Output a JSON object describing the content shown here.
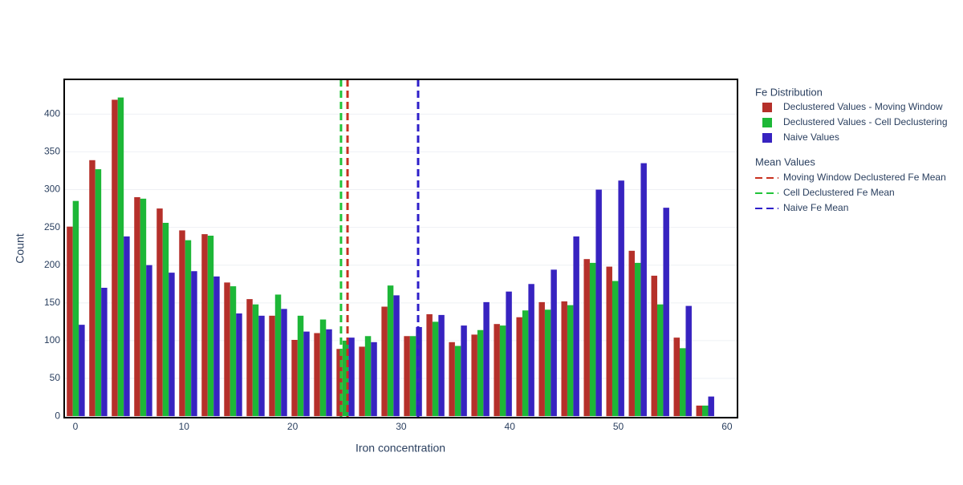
{
  "chart_data": {
    "type": "histogram",
    "x_label": "Iron concentration",
    "y_label": "Count",
    "bins": [
      -1,
      1.07,
      3.14,
      5.21,
      7.28,
      9.35,
      11.42,
      13.49,
      15.56,
      17.63,
      19.7,
      21.77,
      23.84,
      25.91,
      27.98,
      30.05,
      32.12,
      34.19,
      36.26,
      38.33,
      40.4,
      42.47,
      44.54,
      46.61,
      48.68,
      50.75,
      52.82,
      54.89,
      56.96,
      59.03
    ],
    "legend_title": "Fe Distribution",
    "series": [
      {
        "name": "Declustered Values - Moving Window",
        "color": "#b5302a",
        "values": [
          251,
          339,
          419,
          290,
          275,
          246,
          241,
          177,
          155,
          133,
          101,
          110,
          89,
          92,
          145,
          106,
          135,
          98,
          108,
          122,
          131,
          151,
          152,
          208,
          198,
          219,
          186,
          104,
          14
        ]
      },
      {
        "name": "Declustered Values - Cell Declustering",
        "color": "#1db737",
        "values": [
          285,
          327,
          422,
          288,
          256,
          233,
          239,
          172,
          148,
          161,
          133,
          128,
          100,
          106,
          173,
          106,
          125,
          93,
          114,
          120,
          140,
          141,
          147,
          203,
          179,
          203,
          148,
          90,
          14
        ]
      },
      {
        "name": "Naive Values",
        "color": "#3723c0",
        "values": [
          121,
          170,
          238,
          200,
          190,
          192,
          185,
          136,
          133,
          142,
          112,
          115,
          104,
          98,
          160,
          118,
          134,
          120,
          151,
          165,
          175,
          194,
          238,
          300,
          312,
          335,
          276,
          146,
          26
        ]
      }
    ],
    "mean_lines_title": "Mean Values",
    "mean_lines": [
      {
        "name": "Moving Window Declustered Fe Mean",
        "color": "#c8311f",
        "value": 25.06
      },
      {
        "name": "Cell Declustered Fe Mean",
        "color": "#22c43a",
        "value": 24.46
      },
      {
        "name": "Naive Fe Mean",
        "color": "#2e1fc9",
        "value": 31.56
      }
    ],
    "xlim": [
      -1.03,
      60.97
    ],
    "xticks": [
      0,
      10,
      20,
      30,
      40,
      50,
      60
    ],
    "ylim": [
      -2,
      446
    ],
    "yticks": [
      0,
      50,
      100,
      150,
      200,
      250,
      300,
      350,
      400
    ],
    "grid": true
  }
}
